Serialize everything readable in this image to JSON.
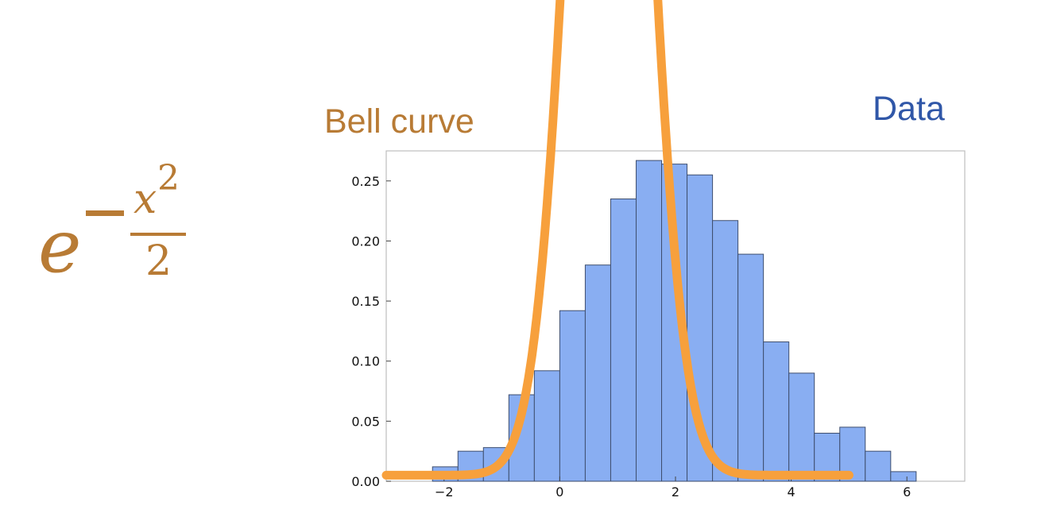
{
  "formula": {
    "base": "e",
    "numerator_var": "x",
    "numerator_power": "2",
    "denominator": "2",
    "color": "#b87b35"
  },
  "labels": {
    "curve_label": "Bell curve",
    "data_label": "Data"
  },
  "colors": {
    "bar_fill": "#89aef2",
    "bar_edge": "#3f4f6f",
    "curve": "#f7a03c",
    "curve_label": "#b87b35",
    "data_label": "#3057a8",
    "frame": "#bdbdbd"
  },
  "chart_data": {
    "type": "bar",
    "xlim": [
      -3,
      7
    ],
    "ylim": [
      0,
      0.275
    ],
    "x_ticks": [
      {
        "value": -2,
        "label": "−2"
      },
      {
        "value": 0,
        "label": "0"
      },
      {
        "value": 2,
        "label": "2"
      },
      {
        "value": 4,
        "label": "4"
      },
      {
        "value": 6,
        "label": "6"
      }
    ],
    "y_ticks": [
      {
        "value": 0,
        "label": "0.00"
      },
      {
        "value": 0.05,
        "label": "0.05"
      },
      {
        "value": 0.1,
        "label": "0.10"
      },
      {
        "value": 0.15,
        "label": "0.15"
      },
      {
        "value": 0.2,
        "label": "0.20"
      },
      {
        "value": 0.25,
        "label": "0.25"
      }
    ],
    "bin_edges": [
      -2.2,
      -1.76,
      -1.32,
      -0.88,
      -0.44,
      0.0,
      0.44,
      0.88,
      1.32,
      1.76,
      2.2,
      2.64,
      3.08,
      3.52,
      3.96,
      4.4,
      4.84,
      5.28,
      5.72,
      6.16
    ],
    "values": [
      0.012,
      0.025,
      0.028,
      0.072,
      0.092,
      0.142,
      0.18,
      0.235,
      0.267,
      0.264,
      0.255,
      0.217,
      0.189,
      0.116,
      0.09,
      0.04,
      0.045,
      0.025,
      0.008
    ],
    "curve": {
      "function": "exp(-x^2/2)",
      "mean": 0.85,
      "sd": 0.62,
      "floor": 0.005,
      "x_start": -3,
      "x_end": 5,
      "clipped_at_top": true
    },
    "grid": false
  }
}
